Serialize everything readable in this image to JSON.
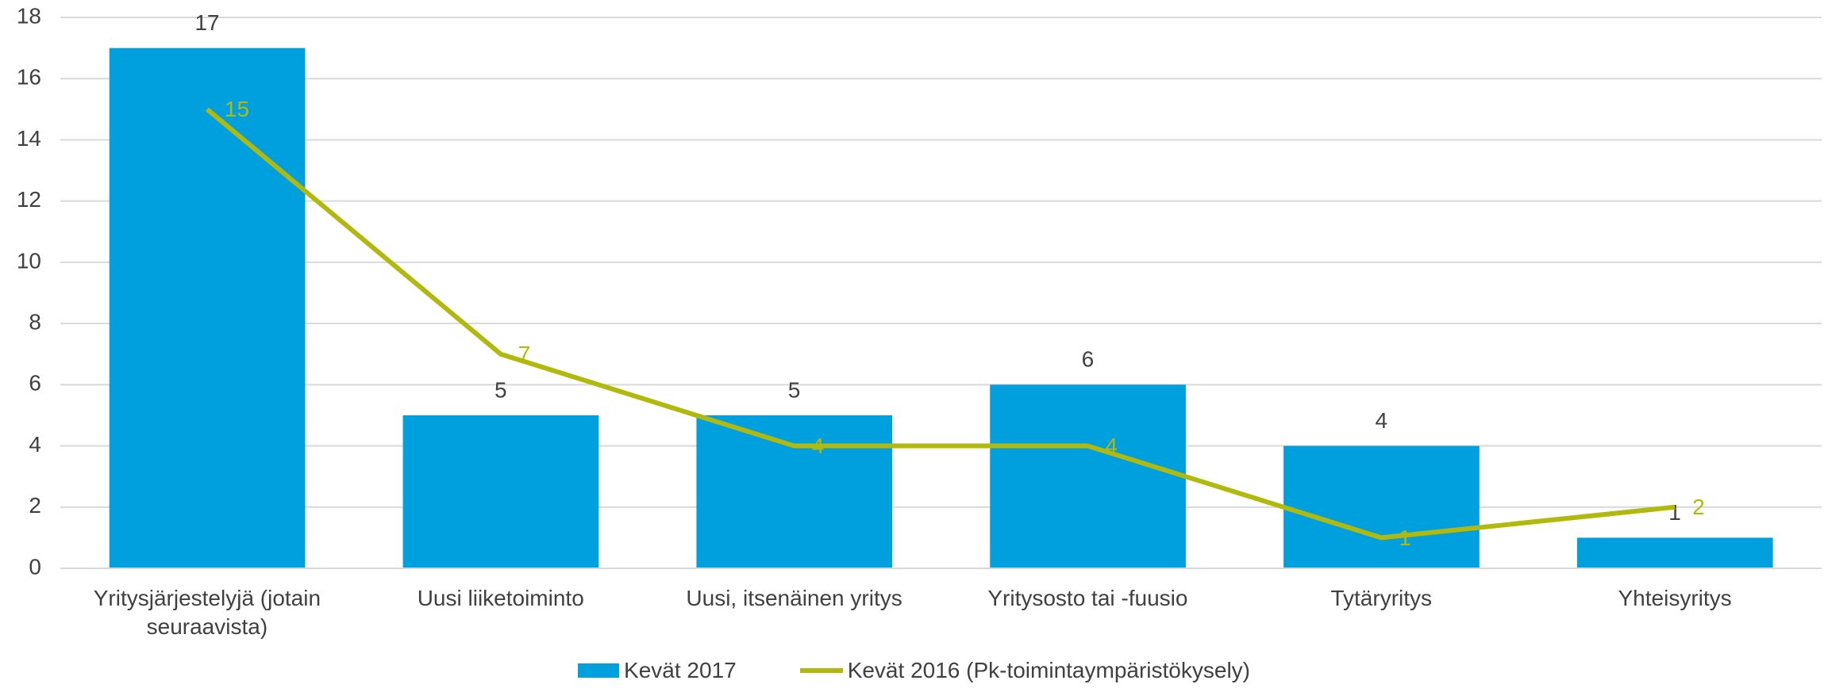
{
  "chart_data": {
    "type": "bar",
    "categories": [
      "Yritysjärjestelyjä (jotain seuraavista)",
      "Uusi liiketoiminto",
      "Uusi, itsenäinen yritys",
      "Yritysosto tai -fuusio",
      "Tytäryritys",
      "Yhteisyritys"
    ],
    "series": [
      {
        "name": "Kevät 2017",
        "type": "bar",
        "color": "#00a0df",
        "label_color": "#404040",
        "values": [
          17,
          5,
          5,
          6,
          4,
          1
        ]
      },
      {
        "name": "Kevät 2016 (Pk-toimintaympäristökysely)",
        "type": "line",
        "color": "#b1ba0c",
        "label_color": "#b1ba0c",
        "values": [
          15,
          7,
          4,
          4,
          1,
          2
        ]
      }
    ],
    "ylim": [
      0,
      18
    ],
    "yticks": [
      0,
      2,
      4,
      6,
      8,
      10,
      12,
      14,
      16,
      18
    ],
    "grid": true,
    "legend": "bottom"
  }
}
